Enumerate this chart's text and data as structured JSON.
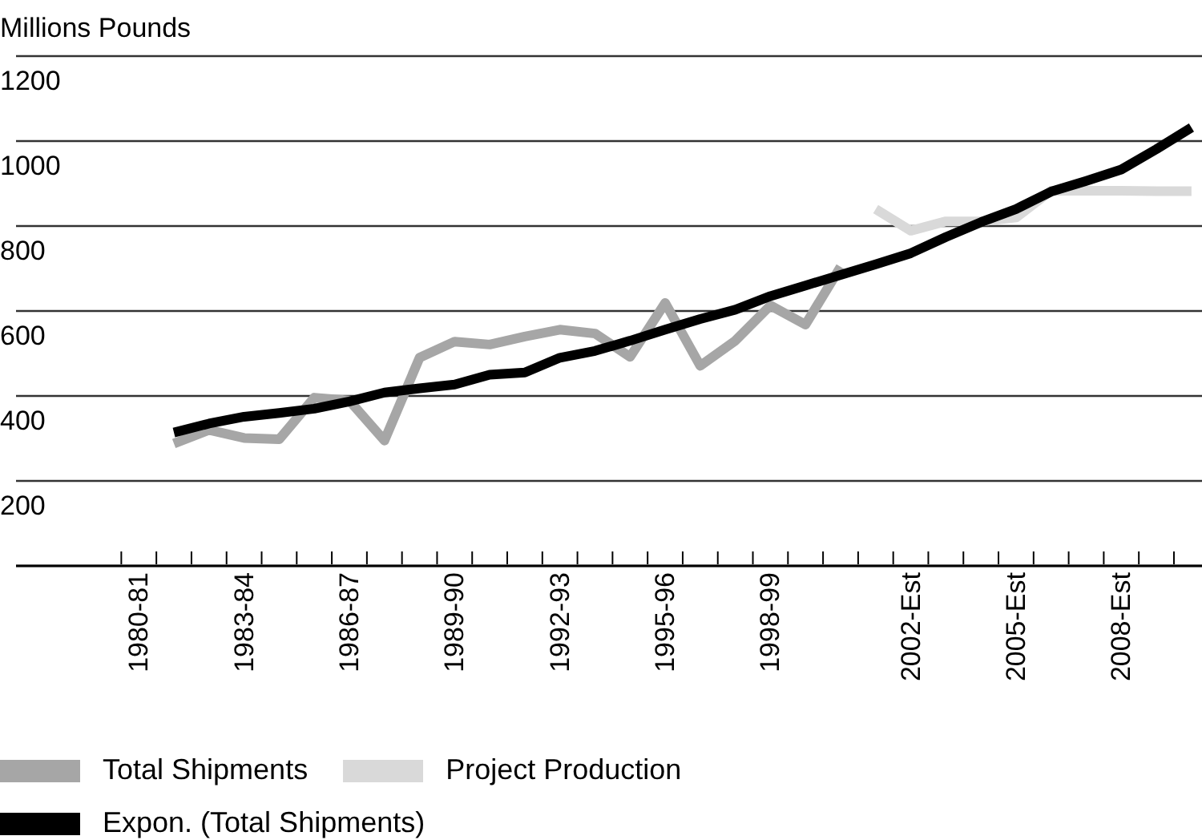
{
  "chart_data": {
    "type": "line",
    "ylabel": "Millions Pounds",
    "categories": [
      "1980-81",
      null,
      null,
      "1983-84",
      null,
      null,
      "1986-87",
      null,
      null,
      "1989-90",
      null,
      null,
      "1992-93",
      null,
      null,
      "1995-96",
      null,
      null,
      "1998-99",
      null,
      null,
      null,
      "2002-Est",
      null,
      null,
      "2005-Est",
      null,
      null,
      "2008-Est",
      null,
      null
    ],
    "series": [
      {
        "name": "Total Shipments",
        "color": "#a6a6a6",
        "values": [
          null,
          288,
          320,
          301,
          298,
          396,
          389,
          295,
          490,
          528,
          521,
          540,
          556,
          547,
          492,
          619,
          471,
          530,
          613,
          568,
          704,
          null,
          null,
          null,
          null,
          null,
          null,
          null,
          null,
          null,
          null
        ]
      },
      {
        "name": "Project Production",
        "color": "#d9d9d9",
        "values": [
          null,
          null,
          null,
          null,
          null,
          null,
          null,
          null,
          null,
          null,
          null,
          null,
          null,
          null,
          null,
          null,
          null,
          null,
          null,
          null,
          null,
          840,
          789,
          811,
          811,
          820,
          883,
          883,
          883,
          882,
          882
        ]
      },
      {
        "name": "Expon. (Total Shipments)",
        "color": "#000000",
        "values": [
          null,
          314,
          335,
          351,
          360,
          370,
          387,
          408,
          418,
          427,
          450,
          455,
          490,
          506,
          530,
          556,
          581,
          603,
          635,
          660,
          685,
          710,
          736,
          774,
          809,
          840,
          881,
          906,
          933,
          981,
          1032
        ]
      }
    ],
    "ylim": [
      0,
      1200
    ],
    "yticks": [
      200,
      400,
      600,
      800,
      1000,
      1200
    ],
    "grid": "y",
    "legend": "bottom left"
  }
}
